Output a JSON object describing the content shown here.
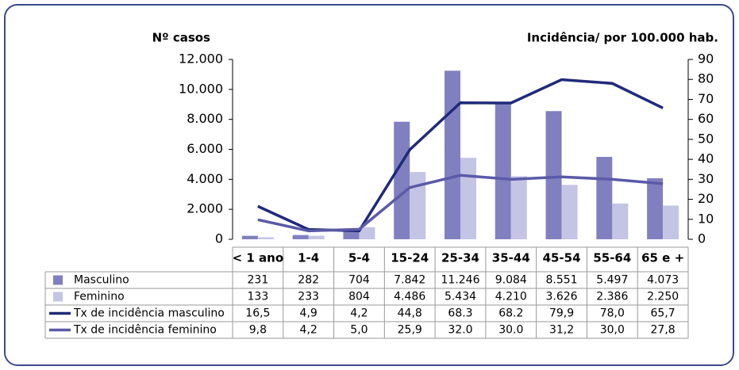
{
  "chart_data": {
    "type": "bar",
    "y_label": "Nº casos",
    "y2_label": "Incidência/ por 100.000 hab.",
    "categories": [
      "< 1 ano",
      "1-4",
      "5-4",
      "15-24",
      "25-34",
      "35-44",
      "45-54",
      "55-64",
      "65 e +"
    ],
    "series": [
      {
        "name": "Masculino",
        "type": "bar",
        "color": "#8080c0",
        "values": [
          231,
          282,
          704,
          7842,
          11246,
          9084,
          8551,
          5497,
          4073
        ],
        "value_labels": [
          "231",
          "282",
          "704",
          "7.842",
          "11.246",
          "9.084",
          "8.551",
          "5.497",
          "4.073"
        ]
      },
      {
        "name": "Feminino",
        "type": "bar",
        "color": "#c4c4e4",
        "values": [
          133,
          233,
          804,
          4486,
          5434,
          4210,
          3626,
          2386,
          2250
        ],
        "value_labels": [
          "133",
          "233",
          "804",
          "4.486",
          "5.434",
          "4.210",
          "3.626",
          "2.386",
          "2.250"
        ]
      },
      {
        "name": "Tx de incidência masculino",
        "type": "line",
        "axis": "y2",
        "color": "#1f2a7a",
        "values": [
          16.5,
          4.9,
          4.2,
          44.8,
          68.3,
          68.2,
          79.9,
          78.0,
          65.7
        ],
        "value_labels": [
          "16,5",
          "4,9",
          "4,2",
          "44,8",
          "68.3",
          "68.2",
          "79,9",
          "78,0",
          "65,7"
        ]
      },
      {
        "name": "Tx de incidência feminino",
        "type": "line",
        "axis": "y2",
        "color": "#5a5aa8",
        "values": [
          9.8,
          4.2,
          5.0,
          25.9,
          32.0,
          30.0,
          31.2,
          30.0,
          27.8
        ],
        "value_labels": [
          "9,8",
          "4,2",
          "5,0",
          "25,9",
          "32.0",
          "30.0",
          "31,2",
          "30,0",
          "27,8"
        ]
      }
    ],
    "ylim": [
      0,
      12000
    ],
    "yticks": [
      0,
      {
        "value": 2000,
        "label": "2.000"
      },
      {
        "value": 4000,
        "label": "4.000"
      },
      {
        "value": 6000,
        "label": "6.000"
      },
      {
        "value": 8000,
        "label": "8.000"
      },
      {
        "value": 10000,
        "label": "10.000"
      },
      {
        "value": 12000,
        "label": "12.000"
      }
    ],
    "y2lim": [
      0,
      90
    ],
    "y2ticks": [
      0,
      10,
      20,
      30,
      40,
      50,
      60,
      70,
      80,
      90
    ],
    "grid": false
  }
}
